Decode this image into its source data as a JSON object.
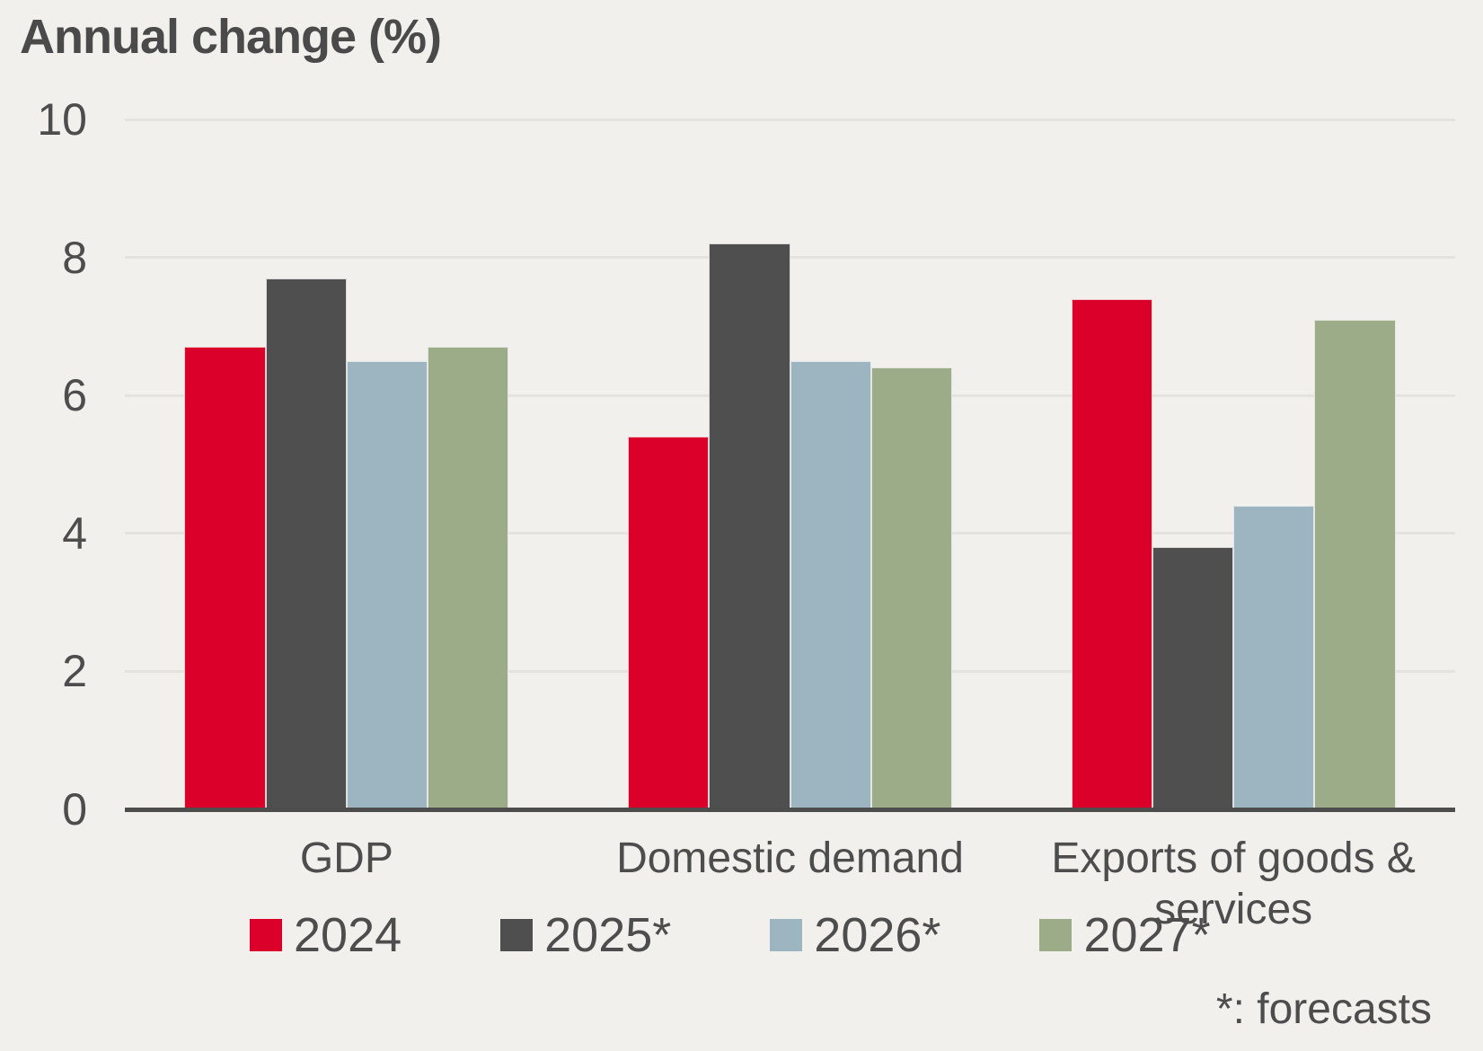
{
  "title": "Annual change (%)",
  "footnote": "*: forecasts",
  "colors": {
    "background": "#f1f0ed",
    "text": "#4d4d4d",
    "gridline": "#e5e3e0",
    "axis_line": "#4d4d4d",
    "series_2024": "#db0029",
    "series_2025": "#4f4f4f",
    "series_2026": "#9db4c1",
    "series_2027": "#9cab88"
  },
  "chart_data": {
    "type": "bar",
    "title": "Annual change (%)",
    "xlabel": "",
    "ylabel": "",
    "ylim": [
      0,
      10
    ],
    "yticks": [
      0,
      2,
      4,
      6,
      8,
      10
    ],
    "grid": true,
    "legend_position": "bottom",
    "categories": [
      "GDP",
      "Domestic demand",
      "Exports of goods & services"
    ],
    "series": [
      {
        "name": "2024",
        "color": "#db0029",
        "values": [
          6.7,
          5.4,
          7.4
        ]
      },
      {
        "name": "2025*",
        "color": "#4f4f4f",
        "values": [
          7.7,
          8.2,
          3.8
        ]
      },
      {
        "name": "2026*",
        "color": "#9db4c1",
        "values": [
          6.5,
          6.5,
          4.4
        ]
      },
      {
        "name": "2027*",
        "color": "#9cab88",
        "values": [
          6.7,
          6.4,
          7.1
        ]
      }
    ],
    "footnote": "*: forecasts"
  }
}
